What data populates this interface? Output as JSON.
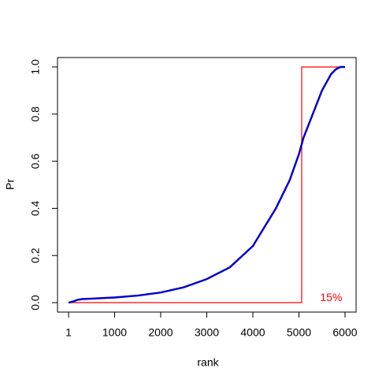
{
  "chart_data": {
    "type": "line",
    "x_label": "rank",
    "y_label": "Pr",
    "xlim": [
      -239,
      6240
    ],
    "ylim": [
      -0.04,
      1.04
    ],
    "xticks": [
      1,
      1000,
      2000,
      3000,
      4000,
      5000,
      6000
    ],
    "yticks": [
      {
        "value": 0,
        "label": "0.0"
      },
      0.2,
      0.4,
      0.6,
      0.8,
      {
        "value": 1,
        "label": "1.0"
      }
    ],
    "series": [
      {
        "color": "#ff0000",
        "x": [
          1,
          5060,
          5060,
          6000
        ],
        "values": [
          0,
          0,
          1,
          1
        ]
      },
      {
        "color": "#0000cc",
        "x": [
          1,
          100,
          200,
          300,
          500,
          1000,
          1500,
          2000,
          2500,
          3000,
          3500,
          4000,
          4500,
          4800,
          5000,
          5100,
          5300,
          5500,
          5700,
          5800,
          5900,
          6000
        ],
        "values": [
          0,
          0.005,
          0.012,
          0.015,
          0.017,
          0.022,
          0.03,
          0.043,
          0.065,
          0.1,
          0.15,
          0.24,
          0.4,
          0.52,
          0.63,
          0.7,
          0.8,
          0.9,
          0.97,
          0.99,
          1.0,
          1.0
        ]
      }
    ],
    "annotation": {
      "text": "15%",
      "x": 5700,
      "y": 0.02,
      "color": "#ff0000"
    }
  }
}
